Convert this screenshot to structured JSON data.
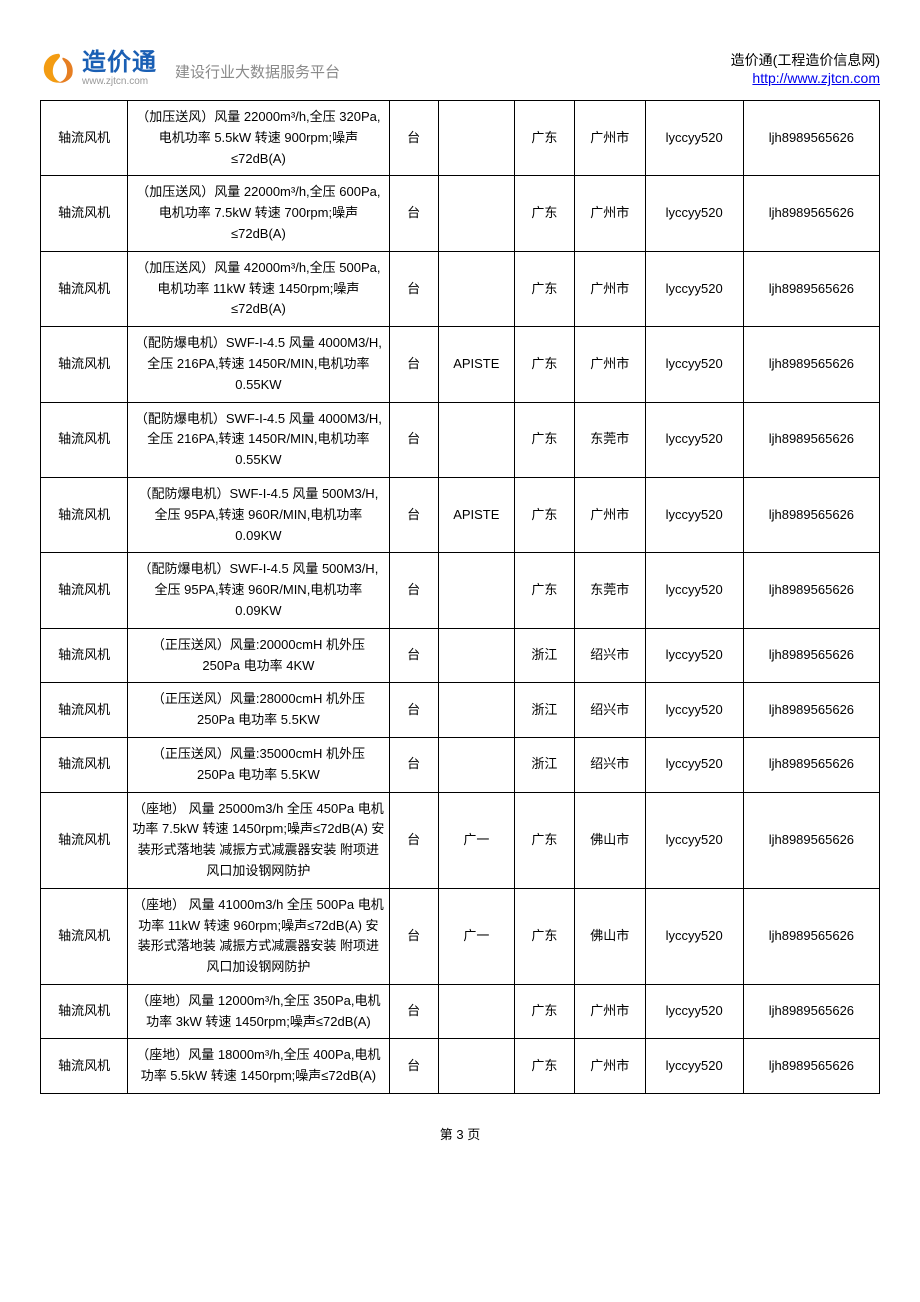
{
  "header": {
    "logo_cn": "造价通",
    "logo_url": "www.zjtcn.com",
    "subtitle": "建设行业大数据服务平台",
    "right_line1": "造价通(工程造价信息网)",
    "right_line2": "http://www.zjtcn.com",
    "logo_colors": {
      "swirl1": "#f39c12",
      "swirl2": "#e67e22",
      "text": "#1a5fb4",
      "url": "#999999",
      "subtitle": "#8a8a8a",
      "link": "#0000ee"
    }
  },
  "table": {
    "border_color": "#000000",
    "rows": [
      {
        "name": "轴流风机",
        "spec": "（加压送风）风量 22000m³/h,全压 320Pa,电机功率 5.5kW 转速 900rpm;噪声≤72dB(A)",
        "unit": "台",
        "brand": "",
        "prov": "广东",
        "city": "广州市",
        "user": "lyccyy520",
        "code": "ljh8989565626"
      },
      {
        "name": "轴流风机",
        "spec": "（加压送风）风量 22000m³/h,全压 600Pa,电机功率 7.5kW 转速 700rpm;噪声≤72dB(A)",
        "unit": "台",
        "brand": "",
        "prov": "广东",
        "city": "广州市",
        "user": "lyccyy520",
        "code": "ljh8989565626"
      },
      {
        "name": "轴流风机",
        "spec": "（加压送风）风量 42000m³/h,全压 500Pa,电机功率 11kW 转速 1450rpm;噪声≤72dB(A)",
        "unit": "台",
        "brand": "",
        "prov": "广东",
        "city": "广州市",
        "user": "lyccyy520",
        "code": "ljh8989565626"
      },
      {
        "name": "轴流风机",
        "spec": "（配防爆电机）SWF-I-4.5 风量 4000M3/H,全压 216PA,转速 1450R/MIN,电机功率 0.55KW",
        "unit": "台",
        "brand": "APISTE",
        "prov": "广东",
        "city": "广州市",
        "user": "lyccyy520",
        "code": "ljh8989565626"
      },
      {
        "name": "轴流风机",
        "spec": "（配防爆电机）SWF-I-4.5 风量 4000M3/H,全压 216PA,转速 1450R/MIN,电机功率 0.55KW",
        "unit": "台",
        "brand": "",
        "prov": "广东",
        "city": "东莞市",
        "user": "lyccyy520",
        "code": "ljh8989565626"
      },
      {
        "name": "轴流风机",
        "spec": "（配防爆电机）SWF-I-4.5 风量 500M3/H,全压 95PA,转速 960R/MIN,电机功率 0.09KW",
        "unit": "台",
        "brand": "APISTE",
        "prov": "广东",
        "city": "广州市",
        "user": "lyccyy520",
        "code": "ljh8989565626"
      },
      {
        "name": "轴流风机",
        "spec": "（配防爆电机）SWF-I-4.5 风量 500M3/H,全压 95PA,转速 960R/MIN,电机功率 0.09KW",
        "unit": "台",
        "brand": "",
        "prov": "广东",
        "city": "东莞市",
        "user": "lyccyy520",
        "code": "ljh8989565626"
      },
      {
        "name": "轴流风机",
        "spec": "（正压送风）风量:20000cmH 机外压 250Pa 电功率 4KW",
        "unit": "台",
        "brand": "",
        "prov": "浙江",
        "city": "绍兴市",
        "user": "lyccyy520",
        "code": "ljh8989565626"
      },
      {
        "name": "轴流风机",
        "spec": "（正压送风）风量:28000cmH 机外压 250Pa 电功率 5.5KW",
        "unit": "台",
        "brand": "",
        "prov": "浙江",
        "city": "绍兴市",
        "user": "lyccyy520",
        "code": "ljh8989565626"
      },
      {
        "name": "轴流风机",
        "spec": "（正压送风）风量:35000cmH 机外压 250Pa 电功率 5.5KW",
        "unit": "台",
        "brand": "",
        "prov": "浙江",
        "city": "绍兴市",
        "user": "lyccyy520",
        "code": "ljh8989565626"
      },
      {
        "name": "轴流风机",
        "spec": "（座地） 风量 25000m3/h 全压 450Pa 电机功率 7.5kW 转速 1450rpm;噪声≤72dB(A) 安装形式落地装 减振方式减震器安装 附项进风口加设钢网防护",
        "unit": "台",
        "brand": "广一",
        "prov": "广东",
        "city": "佛山市",
        "user": "lyccyy520",
        "code": "ljh8989565626"
      },
      {
        "name": "轴流风机",
        "spec": "（座地） 风量 41000m3/h 全压 500Pa 电机功率 11kW 转速 960rpm;噪声≤72dB(A) 安装形式落地装 减振方式减震器安装 附项进风口加设钢网防护",
        "unit": "台",
        "brand": "广一",
        "prov": "广东",
        "city": "佛山市",
        "user": "lyccyy520",
        "code": "ljh8989565626"
      },
      {
        "name": "轴流风机",
        "spec": "（座地）风量 12000m³/h,全压 350Pa,电机功率 3kW 转速 1450rpm;噪声≤72dB(A)",
        "unit": "台",
        "brand": "",
        "prov": "广东",
        "city": "广州市",
        "user": "lyccyy520",
        "code": "ljh8989565626"
      },
      {
        "name": "轴流风机",
        "spec": "（座地）风量 18000m³/h,全压 400Pa,电机功率 5.5kW 转速 1450rpm;噪声≤72dB(A)",
        "unit": "台",
        "brand": "",
        "prov": "广东",
        "city": "广州市",
        "user": "lyccyy520",
        "code": "ljh8989565626"
      }
    ]
  },
  "footer": {
    "page_label": "第 3 页"
  }
}
